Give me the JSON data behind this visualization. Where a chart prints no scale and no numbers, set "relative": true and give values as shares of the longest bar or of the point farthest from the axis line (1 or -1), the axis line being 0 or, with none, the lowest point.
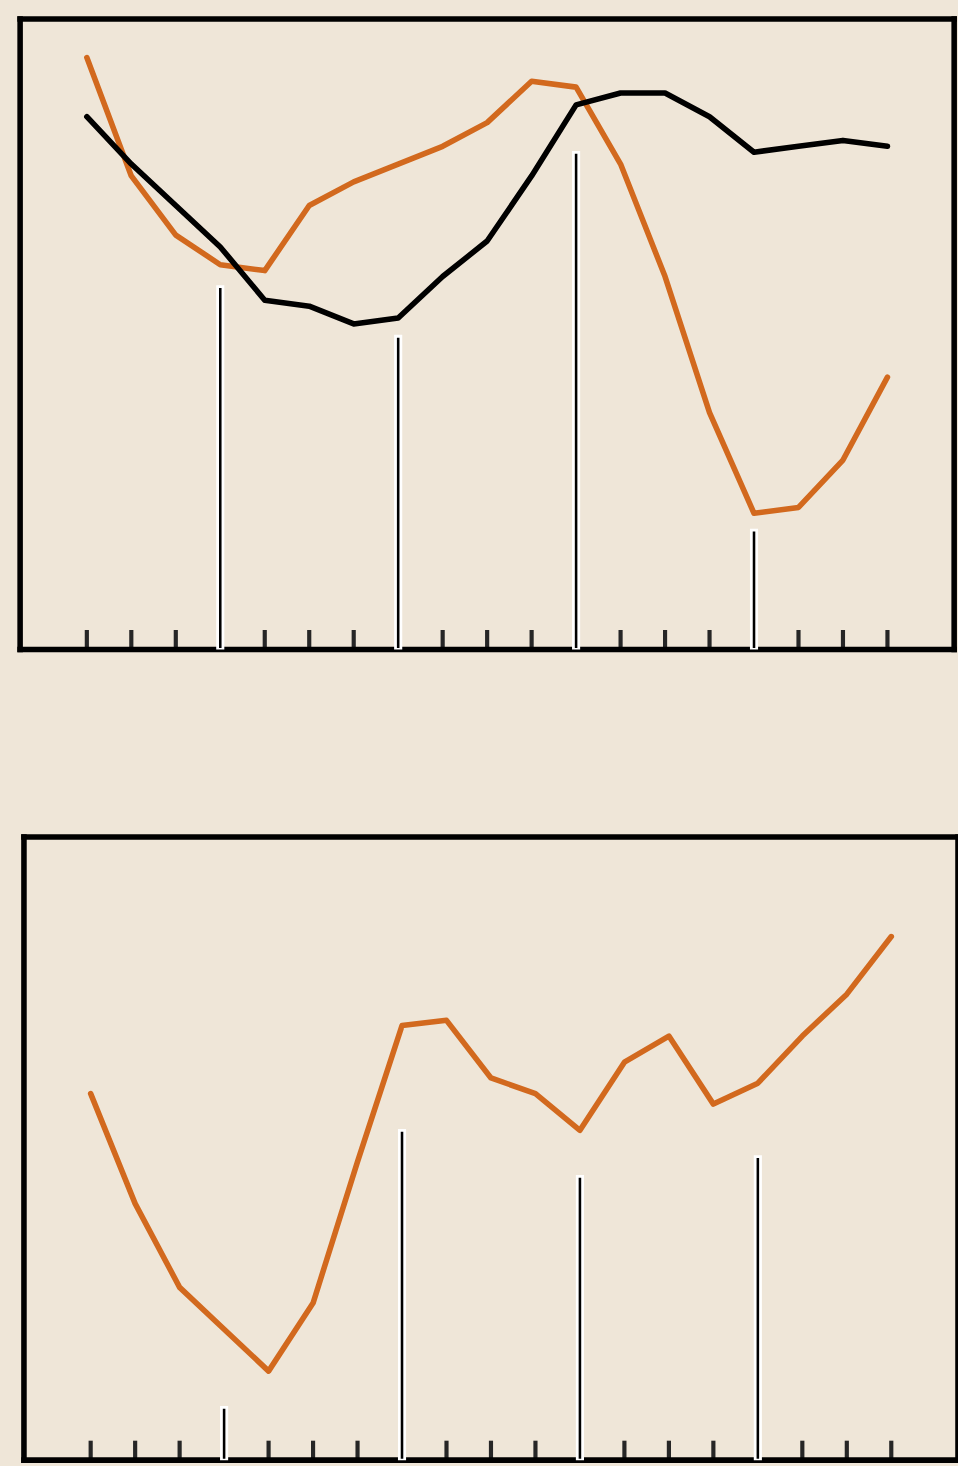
{
  "chart_data": [
    {
      "type": "line",
      "relative": true,
      "grid": false,
      "legend": false,
      "categories": [
        null,
        null,
        null,
        null,
        null,
        null,
        null,
        null,
        null,
        null,
        null,
        null,
        null,
        null,
        null,
        null,
        null,
        null,
        null
      ],
      "series": [
        {
          "color": "#d2691e",
          "values": [
            1.0,
            0.8,
            0.7,
            0.65,
            0.64,
            0.75,
            0.79,
            0.82,
            0.85,
            0.89,
            0.96,
            0.95,
            0.82,
            0.63,
            0.4,
            0.23,
            0.24,
            0.32,
            0.46
          ]
        },
        {
          "color": "#000000",
          "values": [
            0.9,
            0.82,
            0.75,
            0.68,
            0.59,
            0.58,
            0.55,
            0.56,
            0.63,
            0.69,
            0.8,
            0.92,
            0.94,
            0.94,
            0.9,
            0.84,
            0.85,
            0.86,
            0.85
          ]
        }
      ]
    },
    {
      "type": "bar",
      "relative": true,
      "grid": false,
      "legend": false,
      "categories": [
        null,
        null,
        null,
        null
      ],
      "series": [
        {
          "color": "#000000",
          "values": [
            0.73,
            0.63,
            1.0,
            0.24
          ]
        }
      ]
    },
    {
      "type": "line",
      "relative": true,
      "grid": false,
      "legend": false,
      "categories": [
        null,
        null,
        null,
        null,
        null,
        null,
        null,
        null,
        null,
        null,
        null,
        null,
        null,
        null,
        null,
        null,
        null,
        null,
        null
      ],
      "series": [
        {
          "color": "#d2691e",
          "values": [
            0.7,
            0.49,
            0.33,
            0.25,
            0.17,
            0.3,
            0.57,
            0.83,
            0.84,
            0.73,
            0.7,
            0.63,
            0.76,
            0.81,
            0.68,
            0.72,
            0.81,
            0.89,
            1.0
          ]
        }
      ]
    },
    {
      "type": "bar",
      "relative": true,
      "grid": false,
      "legend": false,
      "categories": [
        null,
        null,
        null,
        null
      ],
      "series": [
        {
          "color": "#000000",
          "values": [
            0.16,
            1.0,
            0.86,
            0.92
          ]
        }
      ]
    }
  ]
}
